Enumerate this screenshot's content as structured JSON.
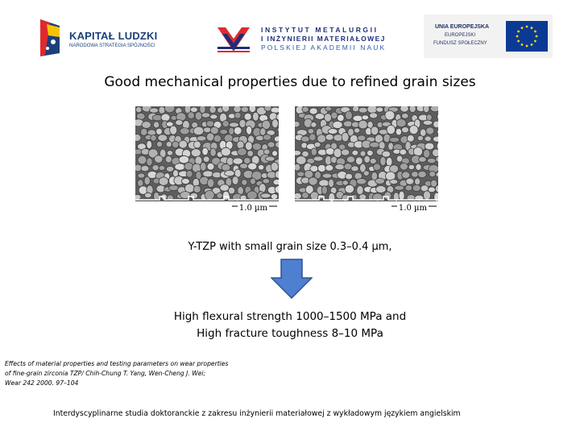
{
  "logos": {
    "kapital_ludzki": {
      "name": "KAPITAŁ LUDZKI",
      "subtitle": "NARODOWA STRATEGIA SPÓJNOŚCI"
    },
    "institute": {
      "line1": "INSTYTUT METALURGII",
      "line2": "I INŻYNIERII MATERIAŁOWEJ",
      "line3": "POLSKIEJ AKADEMII NAUK"
    },
    "eu": {
      "line1": "UNIA EUROPEJSKA",
      "line2": "EUROPEJSKI",
      "line3": "FUNDUSZ SPOŁECZNY"
    }
  },
  "slide": {
    "title": "Good mechanical properties due to refined grain sizes",
    "images": [
      {
        "scale_label": "1.0 µm"
      },
      {
        "scale_label": "1.0 µm"
      }
    ],
    "caption": "Y-TZP with small grain size 0.3–0.4 µm,",
    "result_line1": "High flexural strength 1000–1500 MPa and",
    "result_line2": "High fracture toughness 8–10 MPa",
    "reference": {
      "line1": "Effects of material properties and testing parameters on wear properties",
      "line2": "of fine-grain zirconia TZP/ Chih-Chung T. Yang, Wen-Cheng J. Wei;",
      "line3": "Wear 242 2000. 97–104"
    },
    "footer": "Interdyscyplinarne studia doktoranckie z zakresu inżynierii materiałowej z wykładowym językiem angielskim"
  },
  "colors": {
    "arrow_fill": "#4f7fd1",
    "arrow_stroke": "#2f528f",
    "eu_blue": "#0b3a94",
    "eu_star": "#ffd700"
  }
}
